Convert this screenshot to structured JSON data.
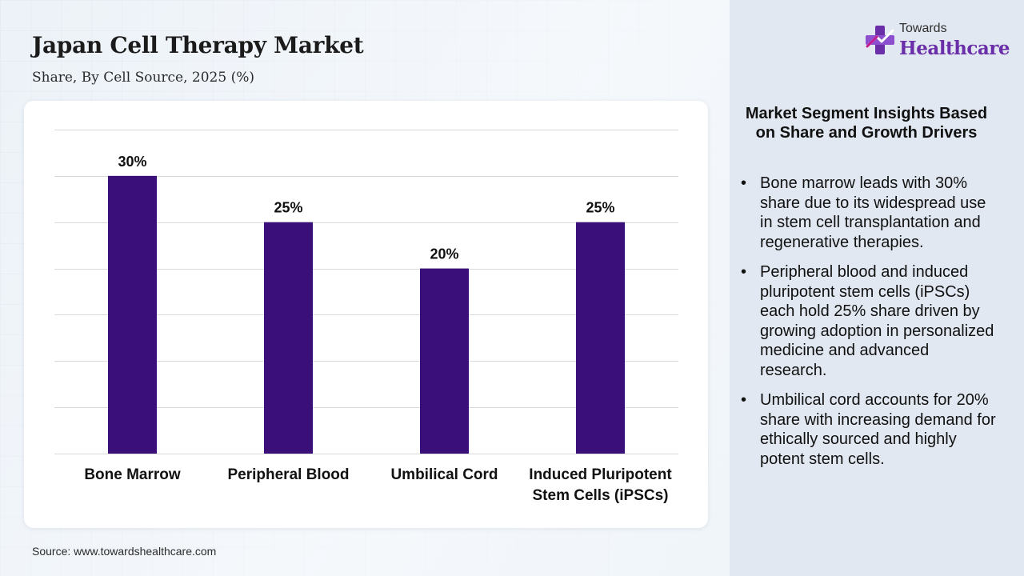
{
  "header": {
    "title": "Japan Cell Therapy Market",
    "subtitle": "Share, By Cell Source, 2025 (%)"
  },
  "logo": {
    "top_text": "Towards",
    "bottom_text": "Healthcare",
    "colors": {
      "purple": "#6a2fa8",
      "magenta": "#c2178f"
    }
  },
  "chart_data": {
    "type": "bar",
    "categories": [
      [
        "Bone Marrow"
      ],
      [
        "Peripheral Blood"
      ],
      [
        "Umbilical Cord"
      ],
      [
        "Induced Pluripotent",
        "Stem Cells (iPSCs)"
      ]
    ],
    "values": [
      30,
      25,
      20,
      25
    ],
    "data_labels": [
      "30%",
      "25%",
      "20%",
      "25%"
    ],
    "ylim": [
      0,
      35
    ],
    "y_gridlines": [
      0,
      5,
      10,
      15,
      20,
      25,
      30,
      35
    ],
    "grid": true,
    "y_axis_labels_shown": false,
    "bar_color": "#3b0f7a",
    "title": "",
    "xlabel": "",
    "ylabel": ""
  },
  "source": "Source: www.towardshealthcare.com",
  "insights": {
    "title": "Market Segment Insights Based on Share and Growth Drivers",
    "bullet_symbol": "•",
    "items": [
      "Bone marrow leads with 30% share due to its widespread use in stem cell transplantation and regenerative therapies.",
      "Peripheral blood and induced pluripotent stem cells (iPSCs) each hold 25% share driven by growing adoption in personalized medicine and advanced research.",
      "Umbilical cord accounts for 20% share with increasing demand for ethically sourced and highly potent stem cells."
    ]
  }
}
